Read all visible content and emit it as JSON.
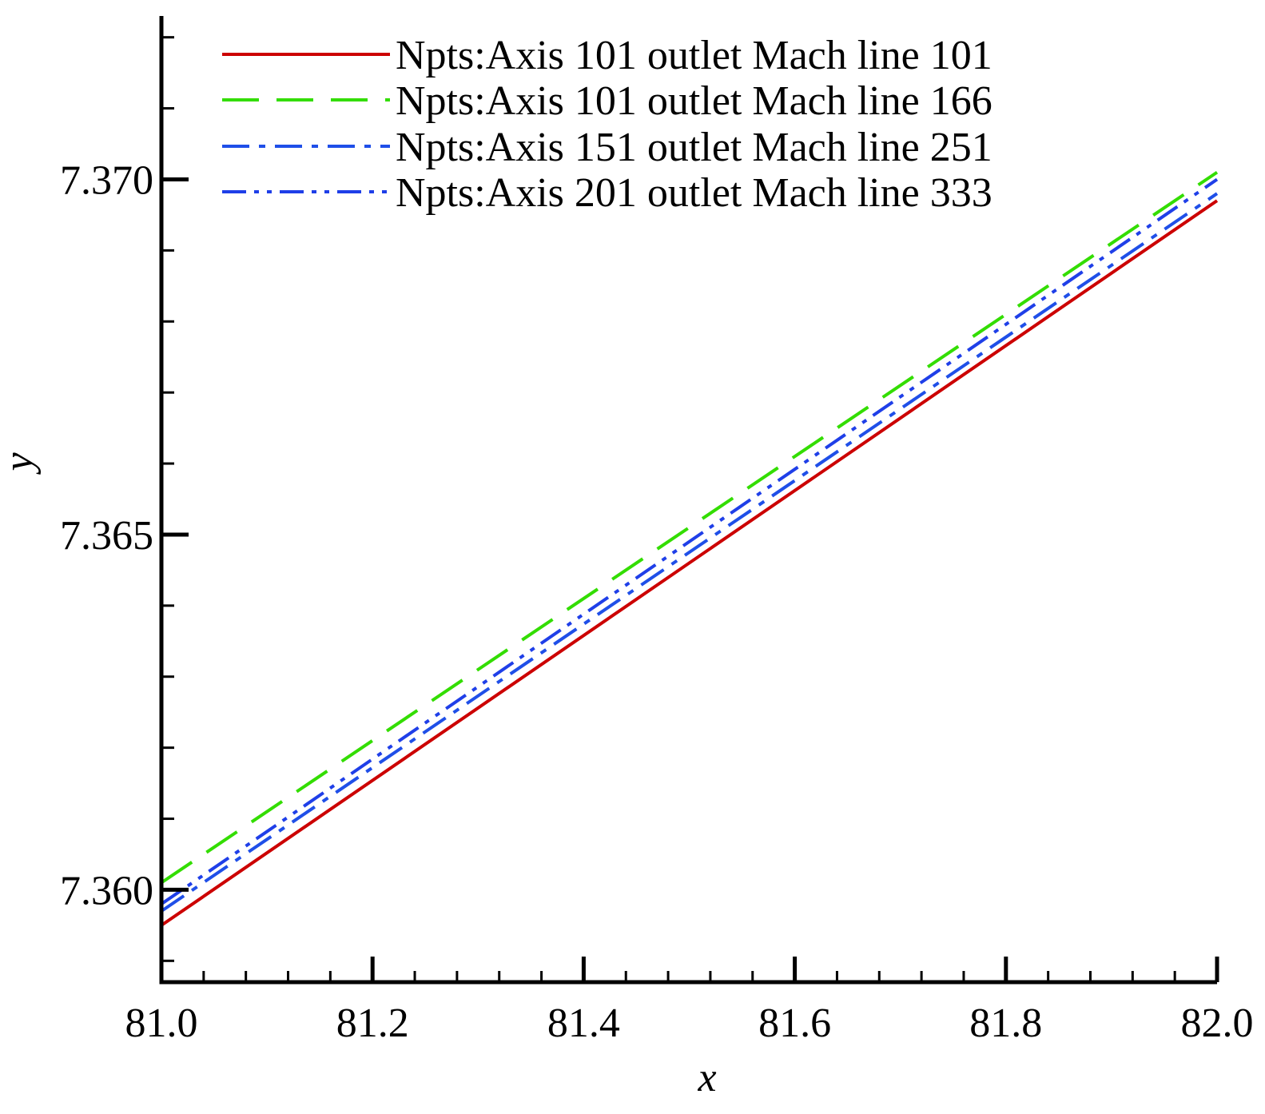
{
  "chart_data": {
    "type": "line",
    "title": "",
    "xlabel": "x",
    "ylabel": "y",
    "xlim": [
      81.0,
      82.0
    ],
    "ylim": [
      7.3587,
      7.3723
    ],
    "x_ticks": [
      "81.0",
      "81.2",
      "81.4",
      "81.6",
      "81.8",
      "82.0"
    ],
    "y_ticks": [
      "7.360",
      "7.365",
      "7.370"
    ],
    "x_tick_values": [
      81.0,
      81.2,
      81.4,
      81.6,
      81.8,
      82.0
    ],
    "y_tick_values": [
      7.36,
      7.365,
      7.37
    ],
    "x_minor_step": 0.04,
    "y_minor_step": 0.001,
    "legend_position": "top-right",
    "grid": false,
    "series": [
      {
        "name": "Npts:Axis 101 outlet Mach line 101",
        "color": "#cc0000",
        "style": "solid",
        "x": [
          81.0,
          82.0
        ],
        "y": [
          7.3595,
          7.3697
        ]
      },
      {
        "name": "Npts:Axis 101 outlet Mach line 166",
        "color": "#33dd00",
        "style": "dash",
        "x": [
          81.0,
          82.0
        ],
        "y": [
          7.3601,
          7.3701
        ]
      },
      {
        "name": "Npts:Axis 151 outlet Mach line 251",
        "color": "#1f4fe8",
        "style": "dashdot",
        "x": [
          81.0,
          82.0
        ],
        "y": [
          7.3597,
          7.3698
        ]
      },
      {
        "name": "Npts:Axis 201 outlet Mach line 333",
        "color": "#1f3fe8",
        "style": "dashdotdot",
        "x": [
          81.0,
          82.0
        ],
        "y": [
          7.3598,
          7.37
        ]
      }
    ]
  }
}
